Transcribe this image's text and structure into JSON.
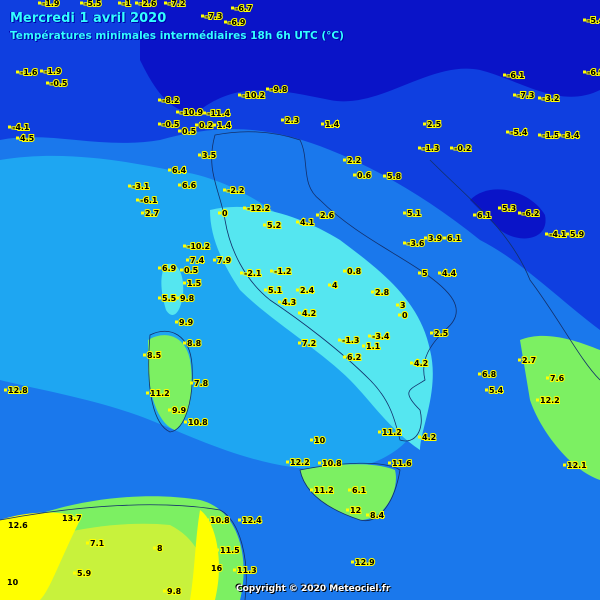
{
  "header": {
    "date": "Mercredi 1 avril 2020",
    "subtitle": "Températures minimales intermédiaires 18h 6h UTC (°C)"
  },
  "copyright": "Copyright © 2020 Meteociel.fr",
  "colors": {
    "below_-5": "#0a14c8",
    "-5_to_0": "#0f3fe0",
    "0_to_5": "#1a78ec",
    "5_to_7": "#1ea6f2",
    "7_to_10": "#55e6f0",
    "10_to_12": "#7cf062",
    "12_to_15": "#c8f23c",
    "above_15": "#ffff00",
    "label_marker": "#ffff00"
  },
  "station_values": [
    "-5.5",
    "-1.9",
    "-1",
    "-2.6",
    "-7.2",
    "-7.3",
    "-6.9",
    "-6.7",
    "-5.4",
    "-1.6",
    "-1.9",
    "-0.5",
    "-8.2",
    "-10.9",
    "-11.4",
    "-9.8",
    "-10.2",
    "-6.1",
    "-7.3",
    "-3.2",
    "-6.9",
    "-4.1",
    "4.5",
    "-0.5",
    "0.5",
    "0.2",
    "1.4",
    "2.3",
    "1.4",
    "2.5",
    "2.2",
    "-1.3",
    "-0.2",
    "-1.5",
    "-3.4",
    "-5.4",
    "-3.1",
    "-6.1",
    "2.7",
    "6.6",
    "6.4",
    "3.5",
    "-2.2",
    "0",
    "-12.2",
    "5.2",
    "4.1",
    "2.6",
    "0.6",
    "5.8",
    "5.1",
    "-3.6",
    "3.9",
    "6.1",
    "6.1",
    "5.3",
    "-6.2",
    "-4.1",
    "5.9",
    "-10.2",
    "7.4",
    "6.9",
    "0.5",
    "1.5",
    "5.5",
    "9.8",
    "9.9",
    "7.9",
    "-2.1",
    "-1.2",
    "0.8",
    "2.4",
    "4",
    "5",
    "4.4",
    "5.1",
    "4.3",
    "4.2",
    "7.2",
    "2.8",
    "0",
    "3",
    "2.5",
    "-1.3",
    "-3.4",
    "6.2",
    "1.1",
    "4.2",
    "6.8",
    "5.4",
    "8.5",
    "8.8",
    "7.8",
    "11.2",
    "9.9",
    "10.8",
    "2.7",
    "7.6",
    "12.2",
    "11.2",
    "4.2",
    "10",
    "10.8",
    "11.6",
    "12.1",
    "12.2",
    "11.2",
    "6.1",
    "12",
    "8.4",
    "12.6",
    "13.7",
    "7.1",
    "5.9",
    "10",
    "10.8",
    "12.4",
    "11.5",
    "9.8",
    "16",
    "11.3",
    "12.9",
    "12.8",
    "8"
  ]
}
